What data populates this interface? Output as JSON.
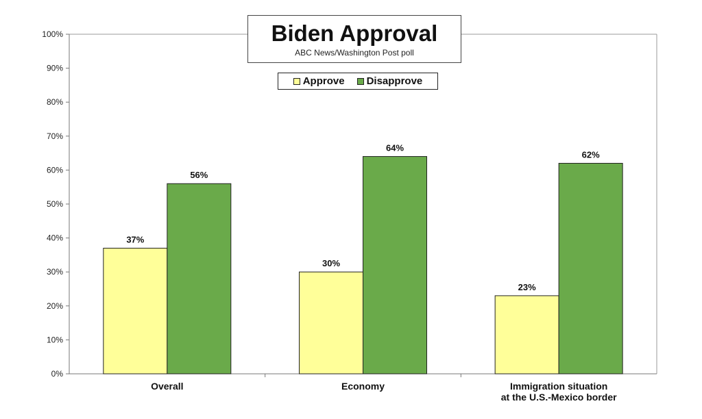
{
  "chart_data": {
    "type": "bar",
    "title": "Biden Approval",
    "subtitle": "ABC News/Washington Post poll",
    "categories": [
      "Overall",
      "Economy",
      "Immigration situation\nat the U.S.-Mexico border"
    ],
    "series": [
      {
        "name": "Approve",
        "values": [
          37,
          30,
          23
        ],
        "color": "#ffff99"
      },
      {
        "name": "Disapprove",
        "values": [
          56,
          64,
          62
        ],
        "color": "#6aaa4a"
      }
    ],
    "value_suffix": "%",
    "ylim": [
      0,
      100
    ],
    "yticks": [
      "0%",
      "10%",
      "20%",
      "30%",
      "40%",
      "50%",
      "60%",
      "70%",
      "80%",
      "90%",
      "100%"
    ],
    "grid": false,
    "legend_position": "top-center"
  }
}
